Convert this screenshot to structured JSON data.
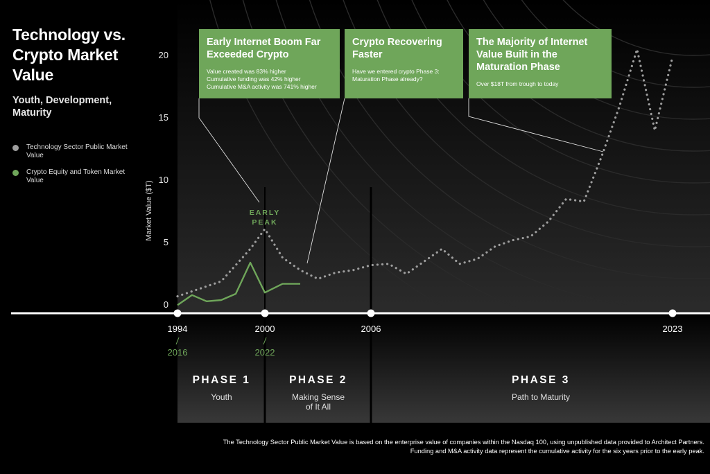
{
  "title": "Technology vs. Crypto Market Value",
  "subtitle": "Youth, Development, Maturity",
  "legend": [
    {
      "label": "Technology Sector Public Market Value",
      "color": "#9e9e9e"
    },
    {
      "label": "Crypto Equity and Token Market Value",
      "color": "#6fa65a"
    }
  ],
  "callouts": [
    {
      "title": "Early Internet Boom Far Exceeded Crypto",
      "body": "Value created was 83% higher\nCumulative funding was 42% higher\nCumulative M&A activity was 741% higher"
    },
    {
      "title": "Crypto Recovering Faster",
      "body": "Have we entered crypto Phase 3:\nMaturation Phase already?"
    },
    {
      "title": "The Majority of Internet Value Built in the Maturation Phase",
      "body": "Over $18T from trough to today"
    }
  ],
  "early_peak": "EARLY\nPEAK",
  "timeline": {
    "tech_years": [
      "1994",
      "2000",
      "2006",
      "2023"
    ],
    "crypto_years": [
      "2016",
      "2022"
    ]
  },
  "phases": [
    {
      "title": "PHASE 1",
      "subtitle": "Youth"
    },
    {
      "title": "PHASE 2",
      "subtitle": "Making Sense\nof It All"
    },
    {
      "title": "PHASE 3",
      "subtitle": "Path to Maturity"
    }
  ],
  "footnote": "The Technology Sector Public Market Value is based on the enterprise value of companies within the Nasdaq 100, using unpublished data provided to Architect Partners. Funding and M&A activity data represent the cumulative activity for the six years prior to the early peak.",
  "colors": {
    "tech": "#9e9e9e",
    "crypto": "#6fa65a",
    "accent": "#6fa65a",
    "background": "#000000"
  },
  "chart_data": {
    "type": "line",
    "title": "Technology vs. Crypto Market Value",
    "xlabel": "",
    "ylabel": "Market Value ($T)",
    "ylim": [
      0,
      20
    ],
    "yticks": [
      0,
      5,
      10,
      15,
      20
    ],
    "series": [
      {
        "name": "Technology Sector Public Market Value",
        "style": "dotted",
        "x": [
          1994,
          1995,
          1996,
          1997,
          1998,
          1999,
          2000,
          2001,
          2002,
          2003,
          2004,
          2005,
          2006,
          2007,
          2008,
          2009,
          2010,
          2011,
          2012,
          2013,
          2014,
          2015,
          2016,
          2017,
          2018,
          2019,
          2020,
          2021,
          2022,
          2023
        ],
        "values": [
          0.8,
          1.2,
          1.6,
          2.0,
          3.3,
          4.6,
          6.2,
          3.9,
          2.9,
          2.2,
          2.7,
          2.9,
          3.3,
          3.4,
          2.6,
          3.6,
          4.6,
          3.4,
          3.8,
          4.8,
          5.3,
          5.6,
          6.8,
          8.6,
          8.4,
          12.0,
          16.0,
          20.6,
          14.1,
          20.0
        ]
      },
      {
        "name": "Crypto Equity and Token Market Value",
        "style": "solid",
        "x": [
          2016,
          2017,
          2018,
          2019,
          2020,
          2021,
          2022,
          2023,
          2024
        ],
        "values": [
          0.1,
          0.9,
          0.4,
          0.5,
          1.0,
          3.5,
          1.1,
          1.8,
          1.8
        ]
      }
    ],
    "x_axis_range": [
      1994,
      2023
    ],
    "crypto_time_alignment": "2016 aligned with 1994, 2022 aligned with 2000"
  }
}
